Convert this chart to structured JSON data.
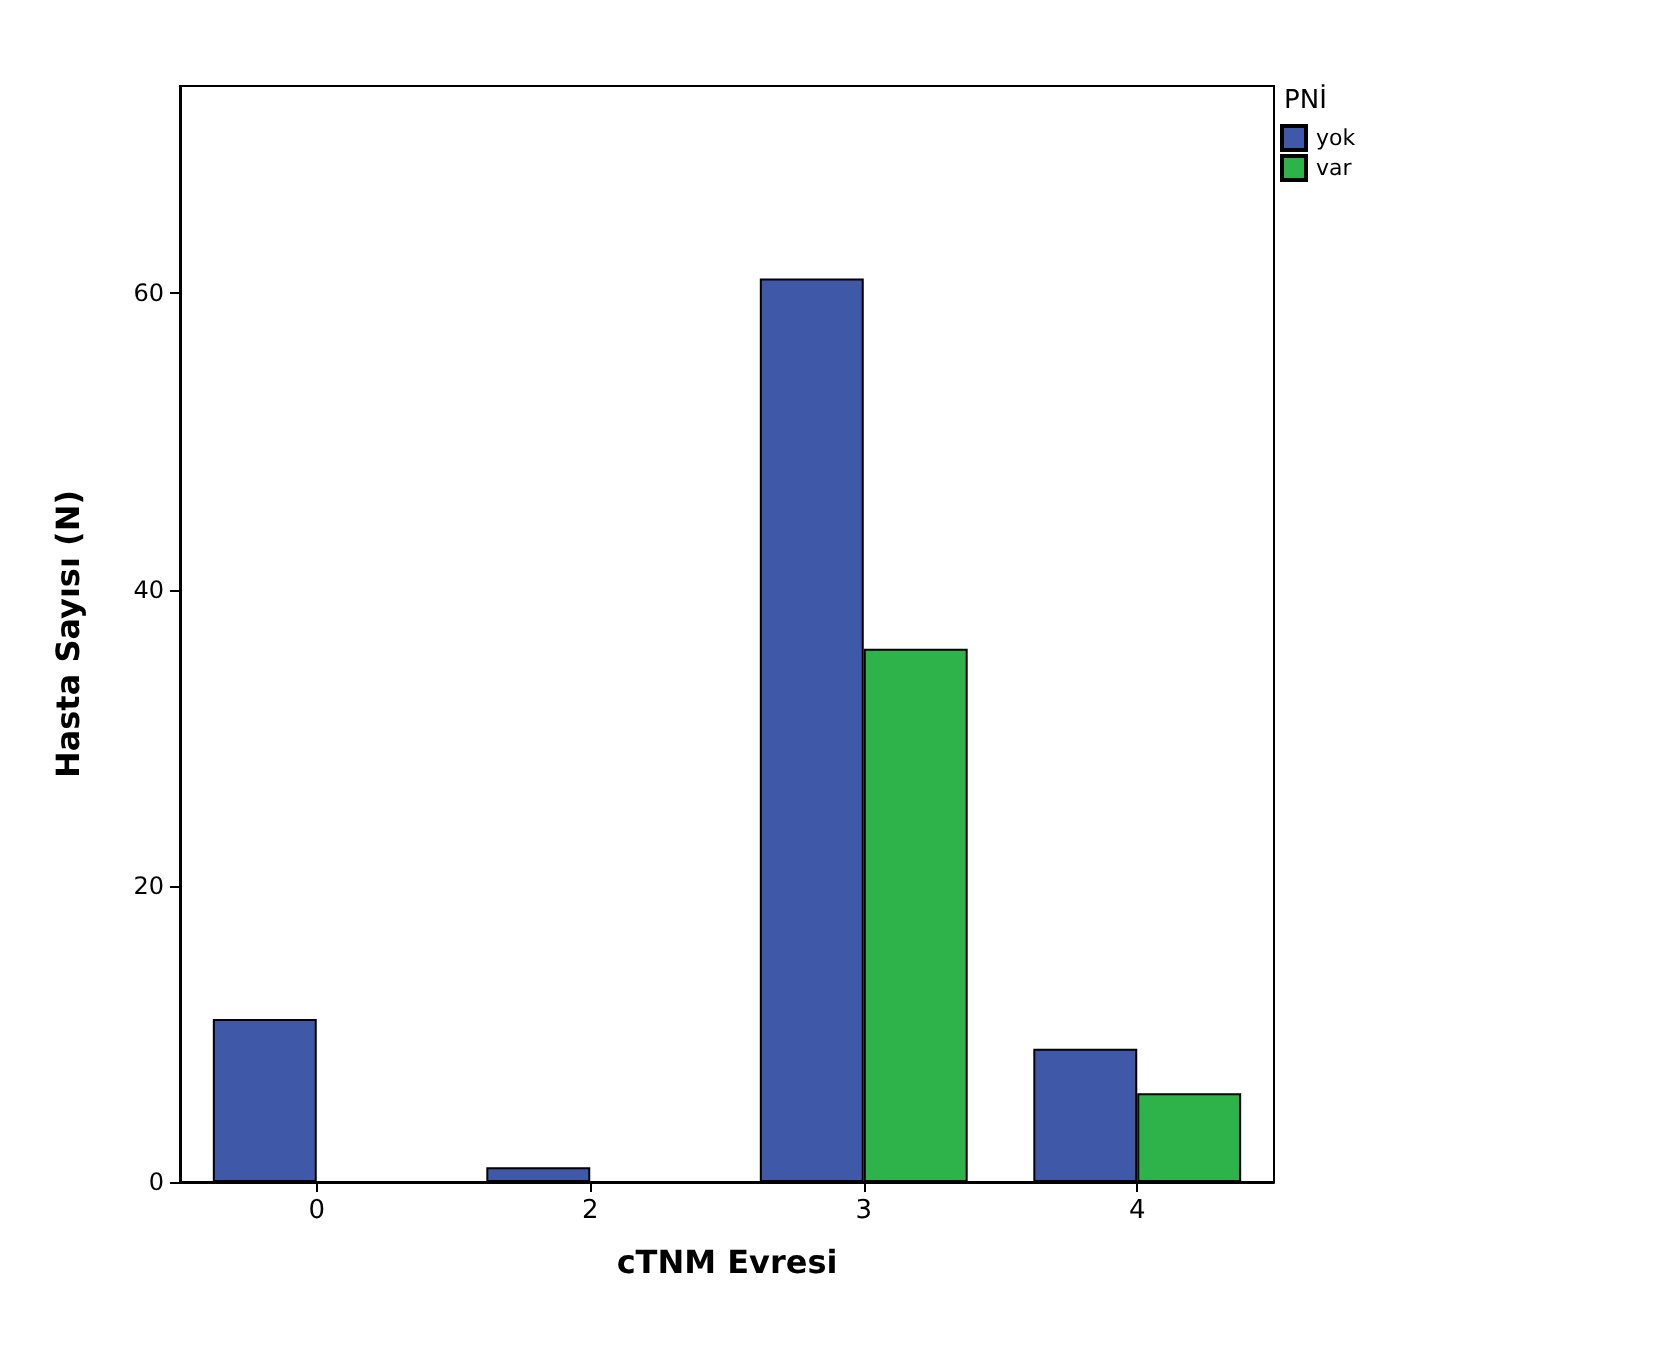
{
  "chart_data": {
    "type": "bar",
    "xlabel": "cTNM Evresi",
    "ylabel": "Hasta Sayısı (N)",
    "legend_title": "PNİ",
    "categories": [
      "0",
      "2",
      "3",
      "4"
    ],
    "series": [
      {
        "name": "yok",
        "color": "#3f58a8",
        "values": [
          11,
          1,
          61,
          9
        ]
      },
      {
        "name": "var",
        "color": "#2eb34b",
        "values": [
          null,
          null,
          36,
          6
        ]
      }
    ],
    "ylim": [
      0,
      74
    ],
    "yticks": [
      0,
      20,
      40,
      60
    ],
    "grid": false,
    "legend": "top right"
  }
}
